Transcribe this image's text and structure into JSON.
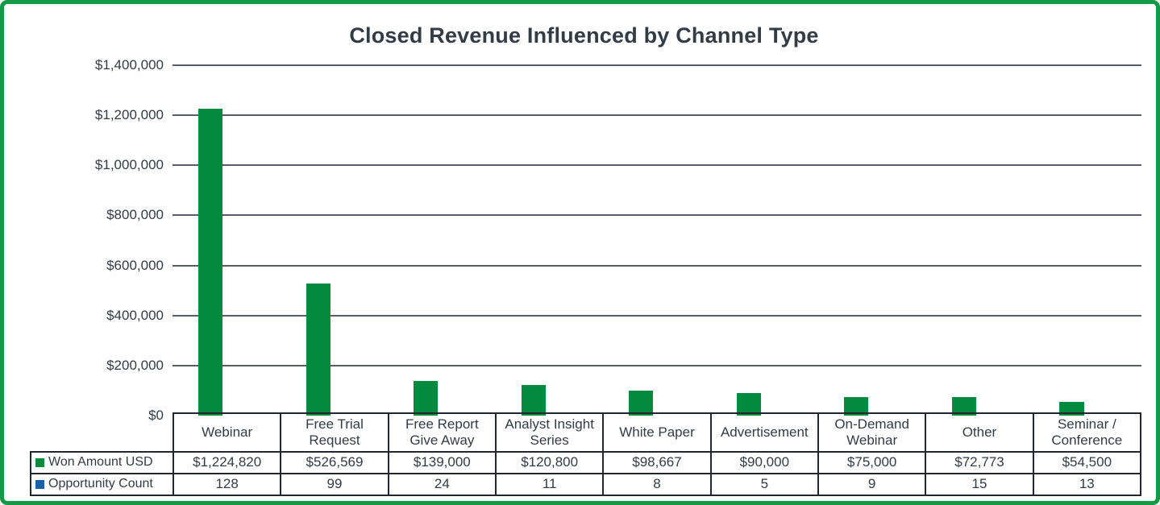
{
  "title": "Closed Revenue Influenced by Channel Type",
  "colors": {
    "frame_border": "#149A44",
    "background": "#FFFFFF",
    "bar_green": "#028A3E",
    "legend_blue": "#1A5FA8",
    "text": "#333B44",
    "gridline": "#575D64",
    "table_border": "#23272D"
  },
  "chart_data": {
    "type": "bar",
    "title": "Closed Revenue Influenced by Channel Type",
    "categories": [
      "Webinar",
      "Free Trial Request",
      "Free Report Give Away",
      "Analyst Insight Series",
      "White Paper",
      "Advertisement",
      "On-Demand Webinar",
      "Other",
      "Seminar / Conference"
    ],
    "series": [
      {
        "name": "Won Amount USD",
        "color": "#028A3E",
        "values": [
          1224820,
          526569,
          139000,
          120800,
          98667,
          90000,
          75000,
          72773,
          54500
        ],
        "display": [
          "$1,224,820",
          "$526,569",
          "$139,000",
          "$120,800",
          "$98,667",
          "$90,000",
          "$75,000",
          "$72,773",
          "$54,500"
        ]
      },
      {
        "name": "Opportunity Count",
        "color": "#1A5FA8",
        "values": [
          128,
          99,
          24,
          11,
          8,
          5,
          9,
          15,
          13
        ],
        "display": [
          "128",
          "99",
          "24",
          "11",
          "8",
          "5",
          "9",
          "15",
          "13"
        ]
      }
    ],
    "ylabel": "",
    "xlabel": "",
    "ylim": [
      0,
      1400000
    ],
    "yticks": [
      {
        "value": 1400000,
        "label": "$1,400,000"
      },
      {
        "value": 1200000,
        "label": "$1,200,000"
      },
      {
        "value": 1000000,
        "label": "$1,000,000"
      },
      {
        "value": 800000,
        "label": "$800,000"
      },
      {
        "value": 600000,
        "label": "$600,000"
      },
      {
        "value": 400000,
        "label": "$400,000"
      },
      {
        "value": 200000,
        "label": "$200,000"
      },
      {
        "value": 0,
        "label": "$0"
      }
    ],
    "grid": true,
    "legend_position": "table-left-column",
    "note": "Opportunity Count series bars are invisible at this axis scale; values shown only in table"
  }
}
